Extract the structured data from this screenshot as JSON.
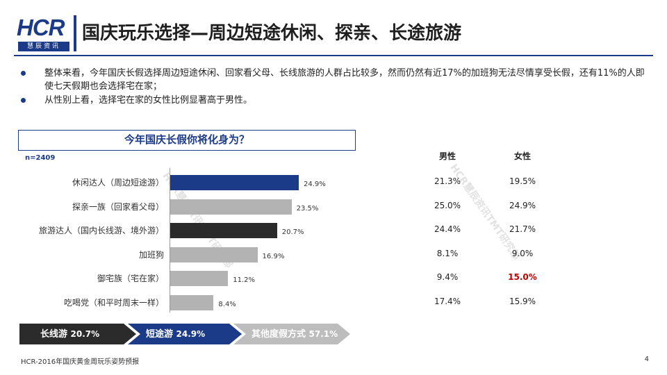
{
  "header": {
    "logo_text": "HCR",
    "logo_sub": "慧辰资讯",
    "title": "国庆玩乐选择—周边短途休闲、探亲、长途旅游"
  },
  "bullets": [
    "整体来看，今年国庆长假选择周边短途休闲、回家看父母、长线旅游的人群占比较多，然而仍然有近17%的加班狗无法尽情享受长假，还有11%的人即使七天假期也会选择宅在家；",
    "从性别上看，选择宅在家的女性比例显著高于男性。"
  ],
  "question": "今年国庆长假你将化身为？",
  "sample": "n=2409",
  "watermark": "HCR慧辰资讯TMT研究部",
  "colors": {
    "navy": "#1b3a87",
    "gray": "#b3b3b3",
    "dark": "#2b2b2b",
    "highlight": "#c00000"
  },
  "chart_data": {
    "type": "bar",
    "orientation": "horizontal",
    "categories": [
      "休闲达人（周边短途游）",
      "探亲一族（回家看父母）",
      "旅游达人（国内长线游、境外游）",
      "加班狗",
      "御宅族（宅在家）",
      "吃喝党（和平时周末一样）"
    ],
    "values": [
      24.9,
      23.5,
      20.7,
      16.9,
      11.2,
      8.4
    ],
    "value_labels": [
      "24.9%",
      "23.5%",
      "20.7%",
      "16.9%",
      "11.2%",
      "8.4%"
    ],
    "bar_colors": [
      "#1b3a87",
      "#b3b3b3",
      "#2b2b2b",
      "#b3b3b3",
      "#b3b3b3",
      "#b3b3b3"
    ],
    "xlim": [
      0,
      30
    ]
  },
  "gender_table": {
    "headers": [
      "男性",
      "女性"
    ],
    "rows": [
      [
        "21.3%",
        "19.5%"
      ],
      [
        "25.0%",
        "24.9%"
      ],
      [
        "24.4%",
        "21.7%"
      ],
      [
        "8.1%",
        "9.0%"
      ],
      [
        "9.4%",
        "15.0%"
      ],
      [
        "17.4%",
        "15.9%"
      ]
    ],
    "highlight": "15.0%"
  },
  "summary_arrows": [
    {
      "label": "长线游",
      "value": "20.7%"
    },
    {
      "label": "短途游",
      "value": "24.9%"
    },
    {
      "label": "其他度假方式",
      "value": "57.1%"
    }
  ],
  "footer": {
    "source": "HCR-2016年国庆黄金周玩乐姿势预报",
    "page": "4"
  }
}
